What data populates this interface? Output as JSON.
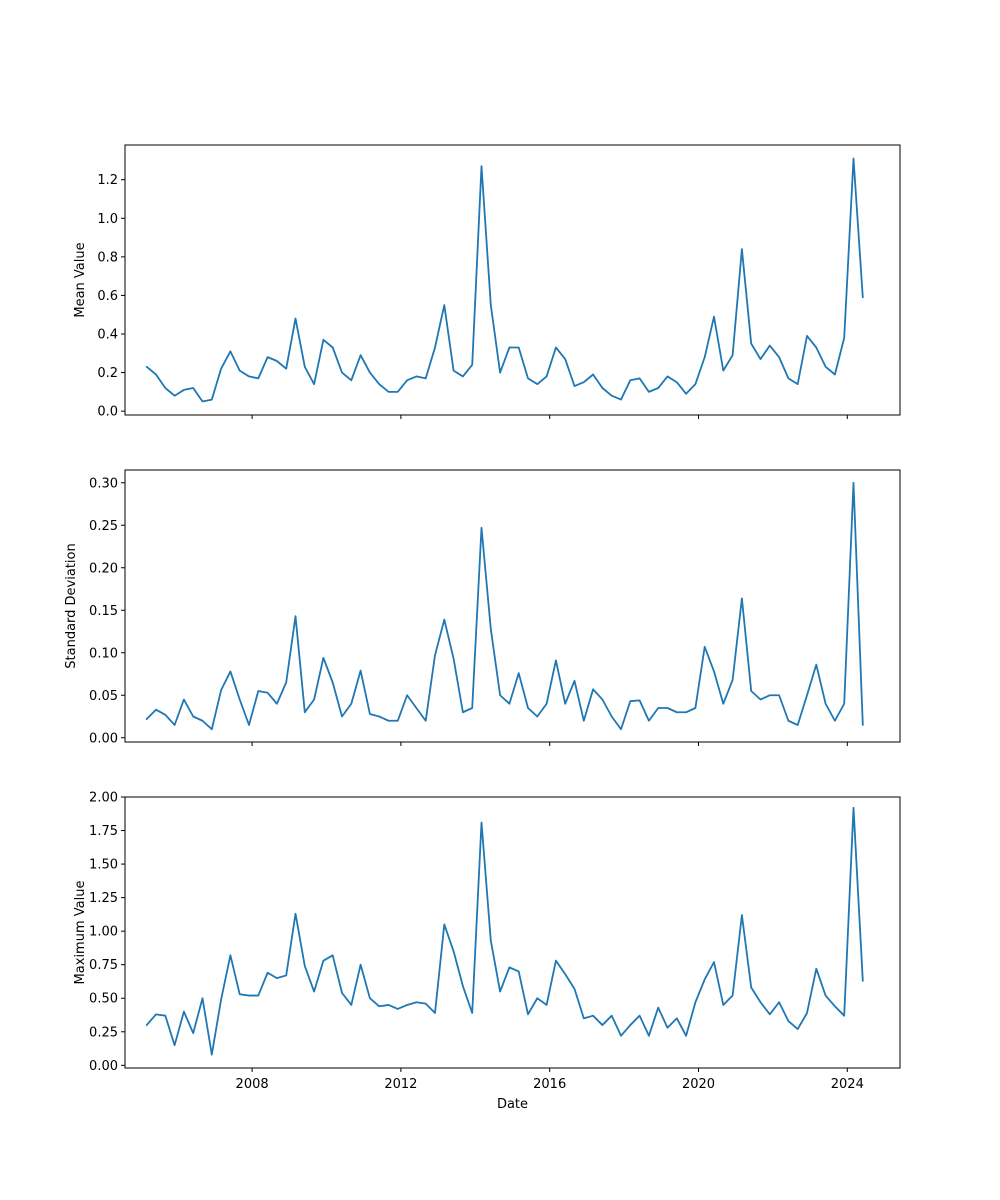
{
  "chart_data": [
    {
      "type": "line",
      "ylabel": "Mean Value",
      "xlabel": "",
      "ylim": [
        -0.02,
        1.38
      ],
      "xlim": [
        "2004-08",
        "2025-06"
      ],
      "yticks": [
        "0.0",
        "0.2",
        "0.4",
        "0.6",
        "0.8",
        "1.0",
        "1.2"
      ],
      "xticks": [
        "2008",
        "2012",
        "2016",
        "2020",
        "2024"
      ],
      "show_xtick_labels": false,
      "color": "#1f77b4",
      "grid": false,
      "series": [
        {
          "x": [
            "2005-03",
            "2005-06",
            "2005-09",
            "2005-12",
            "2006-03",
            "2006-06",
            "2006-09",
            "2006-12",
            "2007-03",
            "2007-06",
            "2007-09",
            "2007-12",
            "2008-03",
            "2008-06",
            "2008-09",
            "2008-12",
            "2009-03",
            "2009-06",
            "2009-09",
            "2009-12",
            "2010-03",
            "2010-06",
            "2010-09",
            "2010-12",
            "2011-03",
            "2011-06",
            "2011-09",
            "2011-12",
            "2012-03",
            "2012-06",
            "2012-09",
            "2012-12",
            "2013-03",
            "2013-06",
            "2013-09",
            "2013-12",
            "2014-03",
            "2014-06",
            "2014-09",
            "2014-12",
            "2015-03",
            "2015-06",
            "2015-09",
            "2015-12",
            "2016-03",
            "2016-06",
            "2016-09",
            "2016-12",
            "2017-03",
            "2017-06",
            "2017-09",
            "2017-12",
            "2018-03",
            "2018-06",
            "2018-09",
            "2018-12",
            "2019-03",
            "2019-06",
            "2019-09",
            "2019-12",
            "2020-03",
            "2020-06",
            "2020-09",
            "2020-12",
            "2021-03",
            "2021-06",
            "2021-09",
            "2021-12",
            "2022-03",
            "2022-06",
            "2022-09",
            "2022-12",
            "2023-03",
            "2023-06",
            "2023-09",
            "2023-12",
            "2024-03",
            "2024-06"
          ],
          "y": [
            0.23,
            0.19,
            0.12,
            0.08,
            0.11,
            0.12,
            0.05,
            0.06,
            0.22,
            0.31,
            0.21,
            0.18,
            0.17,
            0.28,
            0.26,
            0.22,
            0.48,
            0.23,
            0.14,
            0.37,
            0.33,
            0.2,
            0.16,
            0.29,
            0.2,
            0.14,
            0.1,
            0.1,
            0.16,
            0.18,
            0.17,
            0.33,
            0.55,
            0.21,
            0.18,
            0.24,
            1.27,
            0.55,
            0.2,
            0.33,
            0.33,
            0.17,
            0.14,
            0.18,
            0.33,
            0.27,
            0.13,
            0.15,
            0.19,
            0.12,
            0.08,
            0.06,
            0.16,
            0.17,
            0.1,
            0.12,
            0.18,
            0.15,
            0.09,
            0.14,
            0.28,
            0.49,
            0.21,
            0.29,
            0.84,
            0.35,
            0.27,
            0.34,
            0.28,
            0.17,
            0.14,
            0.39,
            0.33,
            0.23,
            0.19,
            0.38,
            1.31,
            0.59
          ]
        }
      ]
    },
    {
      "type": "line",
      "ylabel": "Standard Deviation",
      "xlabel": "",
      "ylim": [
        -0.005,
        0.315
      ],
      "xlim": [
        "2004-08",
        "2025-06"
      ],
      "yticks": [
        "0.00",
        "0.05",
        "0.10",
        "0.15",
        "0.20",
        "0.25",
        "0.30"
      ],
      "xticks": [
        "2008",
        "2012",
        "2016",
        "2020",
        "2024"
      ],
      "show_xtick_labels": false,
      "color": "#1f77b4",
      "grid": false,
      "series": [
        {
          "x": [
            "2005-03",
            "2005-06",
            "2005-09",
            "2005-12",
            "2006-03",
            "2006-06",
            "2006-09",
            "2006-12",
            "2007-03",
            "2007-06",
            "2007-09",
            "2007-12",
            "2008-03",
            "2008-06",
            "2008-09",
            "2008-12",
            "2009-03",
            "2009-06",
            "2009-09",
            "2009-12",
            "2010-03",
            "2010-06",
            "2010-09",
            "2010-12",
            "2011-03",
            "2011-06",
            "2011-09",
            "2011-12",
            "2012-03",
            "2012-06",
            "2012-09",
            "2012-12",
            "2013-03",
            "2013-06",
            "2013-09",
            "2013-12",
            "2014-03",
            "2014-06",
            "2014-09",
            "2014-12",
            "2015-03",
            "2015-06",
            "2015-09",
            "2015-12",
            "2016-03",
            "2016-06",
            "2016-09",
            "2016-12",
            "2017-03",
            "2017-06",
            "2017-09",
            "2017-12",
            "2018-03",
            "2018-06",
            "2018-09",
            "2018-12",
            "2019-03",
            "2019-06",
            "2019-09",
            "2019-12",
            "2020-03",
            "2020-06",
            "2020-09",
            "2020-12",
            "2021-03",
            "2021-06",
            "2021-09",
            "2021-12",
            "2022-03",
            "2022-06",
            "2022-09",
            "2022-12",
            "2023-03",
            "2023-06",
            "2023-09",
            "2023-12",
            "2024-03",
            "2024-06"
          ],
          "y": [
            0.022,
            0.033,
            0.027,
            0.015,
            0.045,
            0.025,
            0.02,
            0.01,
            0.056,
            0.078,
            0.045,
            0.015,
            0.055,
            0.053,
            0.04,
            0.065,
            0.143,
            0.03,
            0.045,
            0.094,
            0.065,
            0.025,
            0.04,
            0.079,
            0.028,
            0.025,
            0.02,
            0.02,
            0.05,
            0.035,
            0.02,
            0.097,
            0.139,
            0.093,
            0.03,
            0.035,
            0.247,
            0.128,
            0.05,
            0.04,
            0.076,
            0.035,
            0.025,
            0.04,
            0.091,
            0.04,
            0.067,
            0.02,
            0.057,
            0.045,
            0.025,
            0.01,
            0.043,
            0.044,
            0.02,
            0.035,
            0.035,
            0.03,
            0.03,
            0.035,
            0.107,
            0.078,
            0.04,
            0.068,
            0.164,
            0.055,
            0.045,
            0.05,
            0.05,
            0.02,
            0.015,
            0.05,
            0.086,
            0.04,
            0.02,
            0.04,
            0.3,
            0.015
          ]
        }
      ]
    },
    {
      "type": "line",
      "ylabel": "Maximum Value",
      "xlabel": "Date",
      "ylim": [
        -0.02,
        2.0
      ],
      "xlim": [
        "2004-08",
        "2025-06"
      ],
      "yticks": [
        "0.00",
        "0.25",
        "0.50",
        "0.75",
        "1.00",
        "1.25",
        "1.50",
        "1.75",
        "2.00"
      ],
      "xticks": [
        "2008",
        "2012",
        "2016",
        "2020",
        "2024"
      ],
      "show_xtick_labels": true,
      "color": "#1f77b4",
      "grid": false,
      "series": [
        {
          "x": [
            "2005-03",
            "2005-06",
            "2005-09",
            "2005-12",
            "2006-03",
            "2006-06",
            "2006-09",
            "2006-12",
            "2007-03",
            "2007-06",
            "2007-09",
            "2007-12",
            "2008-03",
            "2008-06",
            "2008-09",
            "2008-12",
            "2009-03",
            "2009-06",
            "2009-09",
            "2009-12",
            "2010-03",
            "2010-06",
            "2010-09",
            "2010-12",
            "2011-03",
            "2011-06",
            "2011-09",
            "2011-12",
            "2012-03",
            "2012-06",
            "2012-09",
            "2012-12",
            "2013-03",
            "2013-06",
            "2013-09",
            "2013-12",
            "2014-03",
            "2014-06",
            "2014-09",
            "2014-12",
            "2015-03",
            "2015-06",
            "2015-09",
            "2015-12",
            "2016-03",
            "2016-06",
            "2016-09",
            "2016-12",
            "2017-03",
            "2017-06",
            "2017-09",
            "2017-12",
            "2018-03",
            "2018-06",
            "2018-09",
            "2018-12",
            "2019-03",
            "2019-06",
            "2019-09",
            "2019-12",
            "2020-03",
            "2020-06",
            "2020-09",
            "2020-12",
            "2021-03",
            "2021-06",
            "2021-09",
            "2021-12",
            "2022-03",
            "2022-06",
            "2022-09",
            "2022-12",
            "2023-03",
            "2023-06",
            "2023-09",
            "2023-12",
            "2024-03",
            "2024-06"
          ],
          "y": [
            0.3,
            0.38,
            0.37,
            0.15,
            0.4,
            0.24,
            0.5,
            0.08,
            0.49,
            0.82,
            0.53,
            0.52,
            0.52,
            0.69,
            0.65,
            0.67,
            1.13,
            0.74,
            0.55,
            0.78,
            0.82,
            0.54,
            0.45,
            0.75,
            0.5,
            0.44,
            0.45,
            0.42,
            0.45,
            0.47,
            0.46,
            0.39,
            1.05,
            0.85,
            0.59,
            0.39,
            1.81,
            0.93,
            0.55,
            0.73,
            0.7,
            0.38,
            0.5,
            0.45,
            0.78,
            0.68,
            0.57,
            0.35,
            0.37,
            0.3,
            0.37,
            0.22,
            0.3,
            0.37,
            0.22,
            0.43,
            0.28,
            0.35,
            0.22,
            0.47,
            0.64,
            0.77,
            0.45,
            0.52,
            1.12,
            0.58,
            0.47,
            0.38,
            0.47,
            0.33,
            0.27,
            0.39,
            0.72,
            0.52,
            0.44,
            0.37,
            1.92,
            0.63
          ]
        }
      ]
    }
  ]
}
